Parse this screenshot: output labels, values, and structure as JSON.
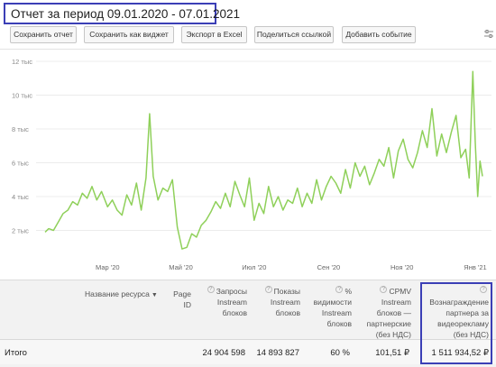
{
  "report": {
    "title": "Отчет за период 09.01.2020 - 07.01.2021"
  },
  "toolbar": {
    "buttons": [
      "Сохранить отчет",
      "Сохранить как виджет",
      "Экспорт в Excel",
      "Поделиться ссылкой",
      "Добавить событие"
    ],
    "settings_icon": "sliders-icon"
  },
  "chart_data": {
    "type": "line",
    "title": "",
    "xlabel": "",
    "ylabel": "",
    "ylim": [
      0,
      12000
    ],
    "y_ticks": [
      "2 тыс",
      "4 тыс",
      "6 тыс",
      "8 тыс",
      "10 тыс",
      "12 тыс"
    ],
    "x_ticks": [
      "Мар '20",
      "Май '20",
      "Июл '20",
      "Сен '20",
      "Ноя '20",
      "Янв '21"
    ],
    "color": "#8fd05a",
    "series": [
      {
        "x": [
          "2020-01-09",
          "2020-01-12",
          "2020-01-16",
          "2020-01-20",
          "2020-01-24",
          "2020-01-28",
          "2020-02-01",
          "2020-02-05",
          "2020-02-09",
          "2020-02-13",
          "2020-02-17",
          "2020-02-21",
          "2020-02-25",
          "2020-03-01",
          "2020-03-05",
          "2020-03-09",
          "2020-03-13",
          "2020-03-17",
          "2020-03-21",
          "2020-03-25",
          "2020-03-29",
          "2020-04-02",
          "2020-04-05",
          "2020-04-08",
          "2020-04-12",
          "2020-04-16",
          "2020-04-20",
          "2020-04-24",
          "2020-04-28",
          "2020-05-02",
          "2020-05-06",
          "2020-05-10",
          "2020-05-14",
          "2020-05-18",
          "2020-05-22",
          "2020-05-26",
          "2020-05-30",
          "2020-06-03",
          "2020-06-07",
          "2020-06-11",
          "2020-06-15",
          "2020-06-19",
          "2020-06-23",
          "2020-06-27",
          "2020-07-01",
          "2020-07-05",
          "2020-07-09",
          "2020-07-13",
          "2020-07-17",
          "2020-07-21",
          "2020-07-25",
          "2020-07-29",
          "2020-08-02",
          "2020-08-06",
          "2020-08-10",
          "2020-08-14",
          "2020-08-18",
          "2020-08-22",
          "2020-08-26",
          "2020-08-30",
          "2020-09-03",
          "2020-09-07",
          "2020-09-11",
          "2020-09-15",
          "2020-09-19",
          "2020-09-23",
          "2020-09-27",
          "2020-10-01",
          "2020-10-05",
          "2020-10-09",
          "2020-10-13",
          "2020-10-17",
          "2020-10-21",
          "2020-10-25",
          "2020-10-29",
          "2020-11-02",
          "2020-11-06",
          "2020-11-10",
          "2020-11-14",
          "2020-11-18",
          "2020-11-22",
          "2020-11-26",
          "2020-11-30",
          "2020-12-04",
          "2020-12-08",
          "2020-12-12",
          "2020-12-16",
          "2020-12-20",
          "2020-12-24",
          "2020-12-27",
          "2020-12-30",
          "2021-01-01",
          "2021-01-03",
          "2021-01-05",
          "2021-01-07"
        ],
        "values": [
          1900,
          2100,
          2000,
          2500,
          3000,
          3200,
          3700,
          3500,
          4200,
          3900,
          4600,
          3800,
          4300,
          3400,
          3800,
          3200,
          2900,
          4100,
          3500,
          4800,
          3200,
          5100,
          8900,
          5200,
          3800,
          4500,
          4300,
          5000,
          2200,
          900,
          1000,
          1800,
          1600,
          2300,
          2600,
          3100,
          3700,
          3300,
          4200,
          3400,
          4900,
          4100,
          3400,
          5100,
          2600,
          3600,
          3000,
          4600,
          3400,
          4000,
          3200,
          3800,
          3600,
          4500,
          3400,
          4200,
          3600,
          5000,
          3800,
          4600,
          5200,
          4800,
          4200,
          5600,
          4500,
          6000,
          5200,
          5800,
          4700,
          5400,
          6200,
          5800,
          6900,
          5100,
          6700,
          7400,
          6200,
          5700,
          6600,
          7900,
          6900,
          9200,
          6400,
          7700,
          6600,
          7800,
          8800,
          6300,
          6800,
          5100,
          11400,
          7200,
          4000,
          6100,
          5200
        ]
      }
    ]
  },
  "table": {
    "headers": {
      "resource_name": "Название ресурса",
      "page_id": [
        "Page",
        "ID"
      ],
      "requests": [
        "Запросы",
        "Instream",
        "блоков"
      ],
      "impressions": [
        "Показы",
        "Instream",
        "блоков"
      ],
      "visibility": [
        "%",
        "видимости",
        "Instream",
        "блоков"
      ],
      "cpmv": [
        "CPMV",
        "Instream",
        "блоков —",
        "партнерские",
        "(без НДС)"
      ],
      "reward": [
        "Вознаграждение",
        "партнера за",
        "видеорекламу",
        "(без НДС)"
      ]
    },
    "total": {
      "label": "Итого",
      "requests": "24 904 598",
      "impressions": "14 893 827",
      "visibility": "60 %",
      "cpmv": "101,51 ₽",
      "reward": "1 511 934,52 ₽"
    }
  }
}
